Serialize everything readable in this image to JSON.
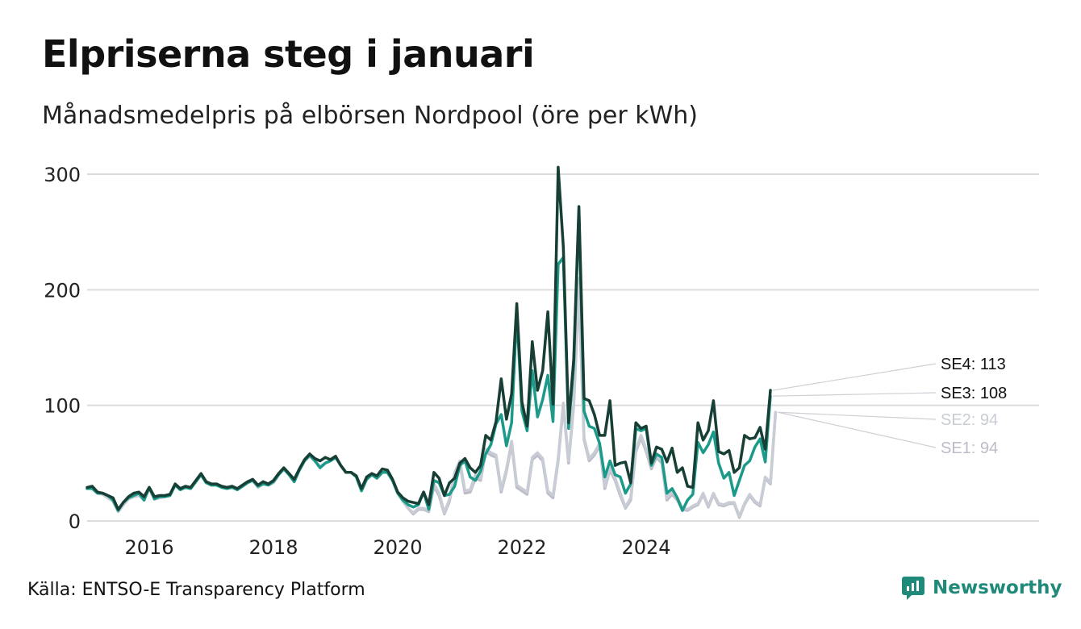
{
  "title": "Elpriserna steg i januari",
  "subtitle": "Månadsmedelpris på elbörsen Nordpool (öre per kWh)",
  "source": "Källa: ENTSO-E Transparency Platform",
  "brand": {
    "name": "Newsworthy",
    "icon": "newsworthy-logo-icon",
    "color": "#1f8a7a"
  },
  "chart_data": {
    "type": "line",
    "title": "Elpriserna steg i januari",
    "ylabel": "öre per kWh",
    "xlabel": "",
    "ylim": [
      0,
      300
    ],
    "yticks": [
      0,
      100,
      200,
      300
    ],
    "xticks": [
      "2016",
      "2018",
      "2020",
      "2022",
      "2024"
    ],
    "x_start": "2015-01",
    "x_end": "2026-01",
    "grid": true,
    "series": [
      {
        "name": "SE1",
        "label": "SE1: 94",
        "color": "#bcbcc8",
        "label_color": "#bcbcc8",
        "values": [
          28,
          29,
          24,
          23,
          20,
          17,
          8,
          14,
          19,
          21,
          22,
          18,
          28,
          19,
          20,
          21,
          22,
          31,
          27,
          29,
          28,
          34,
          40,
          33,
          31,
          32,
          30,
          29,
          30,
          27,
          30,
          33,
          35,
          29,
          32,
          31,
          33,
          40,
          45,
          40,
          34,
          44,
          52,
          56,
          52,
          47,
          50,
          52,
          55,
          48,
          42,
          42,
          38,
          26,
          36,
          40,
          37,
          42,
          42,
          35,
          24,
          17,
          11,
          6,
          10,
          10,
          8,
          30,
          22,
          6,
          17,
          40,
          50,
          24,
          25,
          37,
          35,
          60,
          57,
          55,
          25,
          43,
          67,
          29,
          26,
          23,
          53,
          57,
          52,
          24,
          20,
          52,
          100,
          50,
          100,
          200,
          70,
          52,
          57,
          65,
          28,
          44,
          35,
          22,
          11,
          18,
          60,
          72,
          60,
          45,
          55,
          50,
          18,
          23,
          18,
          10,
          9,
          12,
          14,
          23,
          12,
          23,
          14,
          13,
          15,
          15,
          3,
          14,
          22,
          16,
          13,
          37,
          32,
          94
        ]
      },
      {
        "name": "SE2",
        "label": "SE2: 94",
        "color": "#c8ccd4",
        "label_color": "#c8ccd4",
        "values": [
          28,
          29,
          24,
          23,
          20,
          17,
          8,
          14,
          19,
          21,
          22,
          18,
          28,
          19,
          20,
          21,
          22,
          31,
          27,
          29,
          28,
          34,
          40,
          33,
          31,
          32,
          30,
          29,
          30,
          27,
          30,
          33,
          35,
          29,
          32,
          31,
          33,
          40,
          45,
          40,
          34,
          44,
          52,
          56,
          52,
          47,
          50,
          52,
          55,
          48,
          42,
          42,
          38,
          26,
          36,
          40,
          37,
          42,
          42,
          35,
          24,
          17,
          11,
          7,
          11,
          11,
          9,
          32,
          24,
          7,
          19,
          42,
          52,
          26,
          27,
          40,
          37,
          62,
          59,
          57,
          27,
          45,
          69,
          31,
          28,
          25,
          55,
          59,
          54,
          26,
          22,
          54,
          102,
          52,
          102,
          210,
          72,
          54,
          59,
          67,
          30,
          46,
          37,
          24,
          12,
          20,
          62,
          74,
          62,
          47,
          57,
          52,
          20,
          25,
          20,
          11,
          10,
          13,
          15,
          24,
          13,
          24,
          15,
          14,
          16,
          16,
          4,
          15,
          23,
          17,
          14,
          38,
          33,
          94
        ]
      },
      {
        "name": "SE3",
        "label": "SE3: 108",
        "color": "#1b9a8a",
        "label_color": "#111111",
        "values": [
          28,
          28,
          24,
          24,
          22,
          18,
          9,
          16,
          20,
          22,
          24,
          18,
          29,
          19,
          21,
          21,
          22,
          31,
          27,
          29,
          28,
          34,
          40,
          33,
          31,
          31,
          29,
          28,
          29,
          27,
          30,
          33,
          35,
          30,
          32,
          31,
          34,
          40,
          45,
          40,
          34,
          44,
          52,
          57,
          52,
          46,
          50,
          52,
          55,
          48,
          42,
          42,
          38,
          26,
          36,
          40,
          37,
          42,
          42,
          35,
          24,
          18,
          14,
          12,
          14,
          25,
          10,
          35,
          33,
          22,
          23,
          30,
          48,
          52,
          38,
          35,
          43,
          58,
          66,
          84,
          92,
          65,
          85,
          180,
          95,
          78,
          130,
          90,
          105,
          126,
          86,
          222,
          228,
          80,
          135,
          268,
          95,
          82,
          80,
          67,
          38,
          52,
          40,
          38,
          24,
          32,
          80,
          78,
          80,
          48,
          58,
          55,
          24,
          28,
          20,
          9,
          18,
          23,
          68,
          59,
          66,
          77,
          50,
          37,
          42,
          22,
          35,
          48,
          52,
          64,
          71,
          51,
          108
        ]
      },
      {
        "name": "SE4",
        "label": "SE4: 113",
        "color": "#173f35",
        "label_color": "#111111",
        "values": [
          29,
          30,
          25,
          24,
          22,
          20,
          10,
          16,
          21,
          24,
          25,
          21,
          29,
          21,
          22,
          22,
          23,
          32,
          28,
          30,
          29,
          35,
          41,
          34,
          32,
          32,
          30,
          29,
          30,
          28,
          31,
          34,
          36,
          31,
          34,
          32,
          35,
          41,
          46,
          41,
          36,
          45,
          53,
          58,
          54,
          52,
          55,
          53,
          56,
          48,
          42,
          42,
          39,
          28,
          38,
          41,
          39,
          45,
          44,
          36,
          25,
          20,
          17,
          16,
          15,
          25,
          14,
          42,
          37,
          22,
          33,
          37,
          50,
          54,
          46,
          42,
          48,
          74,
          70,
          86,
          123,
          88,
          110,
          188,
          103,
          82,
          155,
          113,
          130,
          181,
          101,
          306,
          237,
          85,
          140,
          272,
          106,
          104,
          92,
          74,
          74,
          104,
          48,
          50,
          51,
          33,
          85,
          80,
          82,
          50,
          64,
          62,
          51,
          63,
          42,
          46,
          30,
          29,
          85,
          70,
          78,
          104,
          60,
          58,
          61,
          42,
          46,
          74,
          71,
          72,
          81,
          62,
          113
        ]
      }
    ],
    "label_lines": {
      "SE4": 113,
      "SE3": 108,
      "SE2": 94,
      "SE1": 94
    }
  }
}
